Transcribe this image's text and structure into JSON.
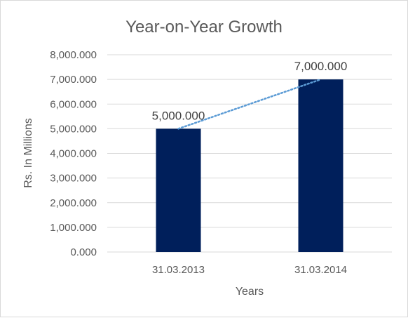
{
  "chart_data": {
    "type": "bar",
    "title": "Year-on-Year Growth",
    "xlabel": "Years",
    "ylabel": "Rs. In Millions",
    "categories": [
      "31.03.2013",
      "31.03.2014"
    ],
    "values": [
      5000,
      7000
    ],
    "value_labels": [
      "5,000.000",
      "7,000.000"
    ],
    "ylim": [
      0,
      8000
    ],
    "yticks": [
      0,
      1000,
      2000,
      3000,
      4000,
      5000,
      6000,
      7000,
      8000
    ],
    "ytick_labels": [
      "0.000",
      "1,000.000",
      "2,000.000",
      "3,000.000",
      "4,000.000",
      "5,000.000",
      "6,000.000",
      "7,000.000",
      "8,000.000"
    ],
    "grid": true,
    "trendline": {
      "type": "linear",
      "style": "dotted",
      "color": "#5b9bd5"
    },
    "colors": {
      "bar": "#001f5b",
      "grid": "#d9d9d9",
      "text": "#595959"
    }
  }
}
